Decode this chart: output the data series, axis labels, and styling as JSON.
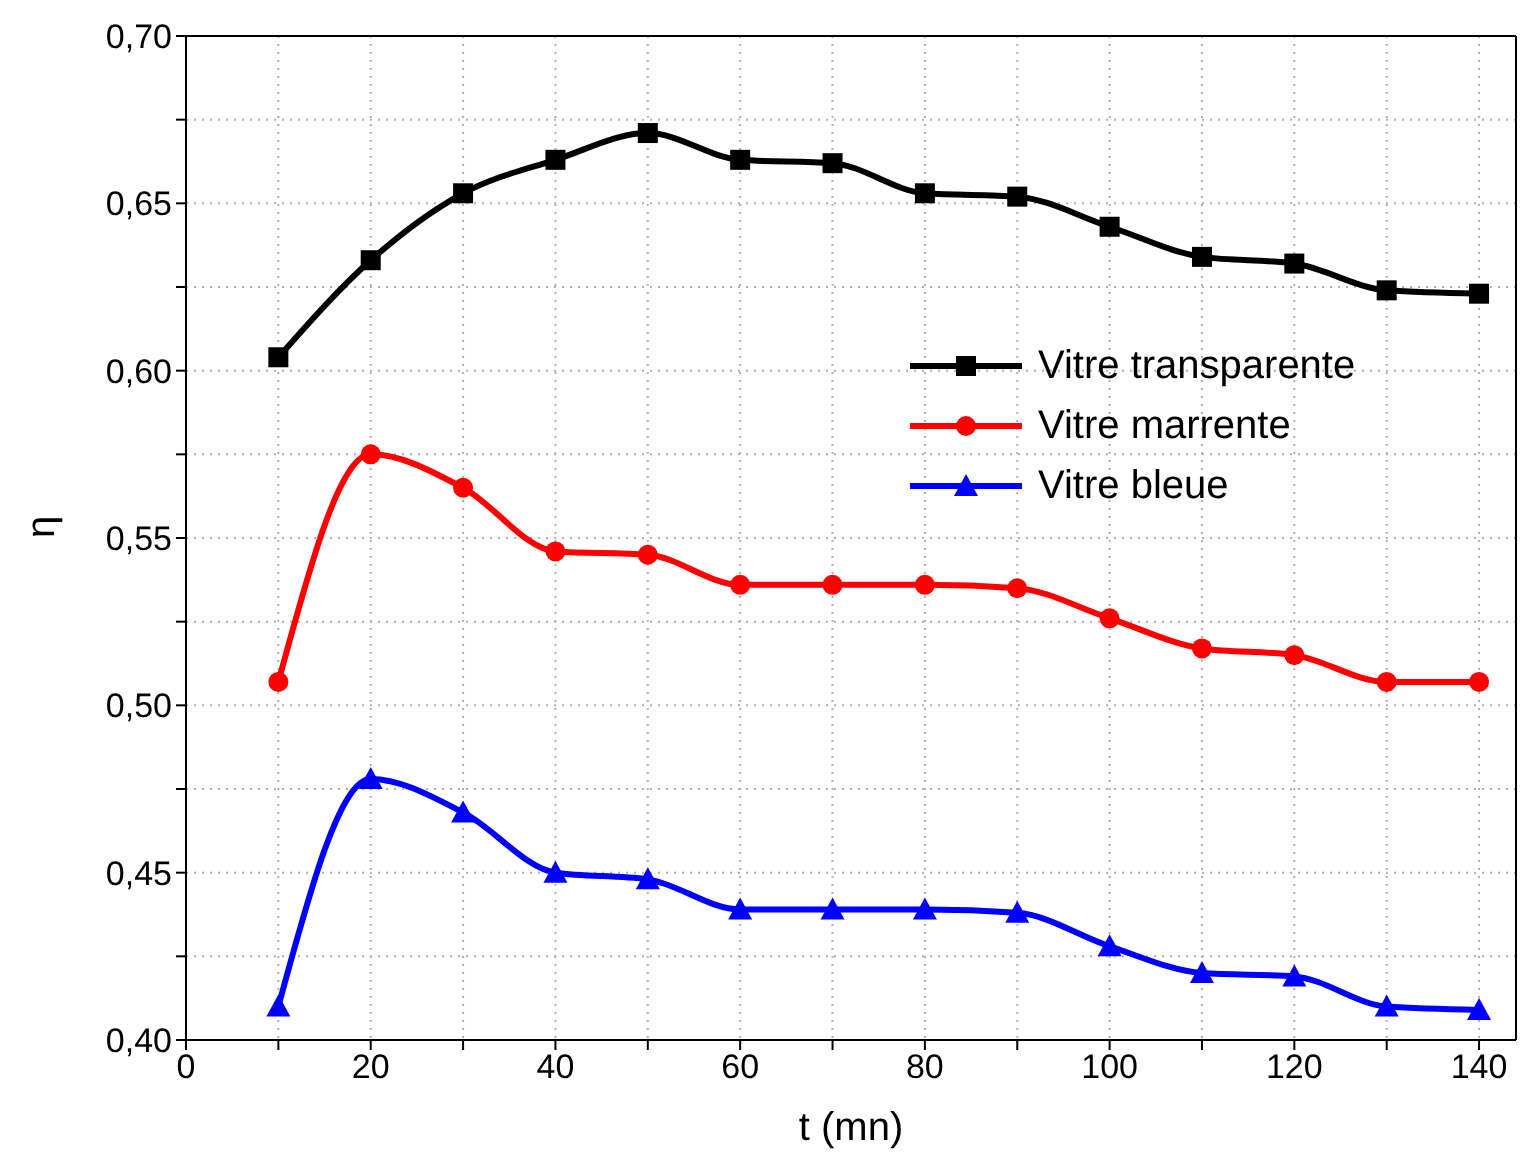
{
  "chart_data": {
    "type": "line",
    "xlabel": "t (mn)",
    "ylabel": "η",
    "x": [
      10,
      20,
      30,
      40,
      50,
      60,
      70,
      80,
      90,
      100,
      110,
      120,
      130,
      140
    ],
    "series": [
      {
        "name": "Vitre transparente",
        "color": "#000000",
        "marker": "square",
        "values": [
          0.604,
          0.633,
          0.653,
          0.663,
          0.671,
          0.663,
          0.662,
          0.653,
          0.652,
          0.643,
          0.634,
          0.632,
          0.624,
          0.623
        ]
      },
      {
        "name": "Vitre marrente",
        "color": "#ff0000",
        "marker": "circle",
        "values": [
          0.507,
          0.575,
          0.565,
          0.546,
          0.545,
          0.536,
          0.536,
          0.536,
          0.535,
          0.526,
          0.517,
          0.515,
          0.507,
          0.507
        ]
      },
      {
        "name": "Vitre bleue",
        "color": "#0000ff",
        "marker": "triangle",
        "values": [
          0.41,
          0.478,
          0.468,
          0.45,
          0.448,
          0.439,
          0.439,
          0.439,
          0.438,
          0.428,
          0.42,
          0.419,
          0.41,
          0.409
        ]
      }
    ],
    "xlim": [
      0,
      144
    ],
    "xticks": [
      0,
      {
        "value": 10,
        "label": null
      },
      20,
      {
        "value": 30,
        "label": null
      },
      40,
      {
        "value": 50,
        "label": null
      },
      60,
      {
        "value": 70,
        "label": null
      },
      80,
      {
        "value": 90,
        "label": null
      },
      100,
      {
        "value": 110,
        "label": null
      },
      120,
      {
        "value": 130,
        "label": null
      },
      140
    ],
    "ylim": [
      0.4,
      0.7
    ],
    "yticks": [
      {
        "value": 0.4,
        "label": "0,40"
      },
      {
        "value": 0.425,
        "label": null
      },
      {
        "value": 0.45,
        "label": "0,45"
      },
      {
        "value": 0.475,
        "label": null
      },
      {
        "value": 0.5,
        "label": "0,50"
      },
      {
        "value": 0.525,
        "label": null
      },
      {
        "value": 0.55,
        "label": "0,55"
      },
      {
        "value": 0.575,
        "label": null
      },
      {
        "value": 0.6,
        "label": "0,60"
      },
      {
        "value": 0.625,
        "label": null
      },
      {
        "value": 0.65,
        "label": "0,65"
      },
      {
        "value": 0.675,
        "label": null
      },
      {
        "value": 0.7,
        "label": "0,70"
      }
    ],
    "grid": true,
    "legend": "right",
    "line_style": "solid"
  }
}
